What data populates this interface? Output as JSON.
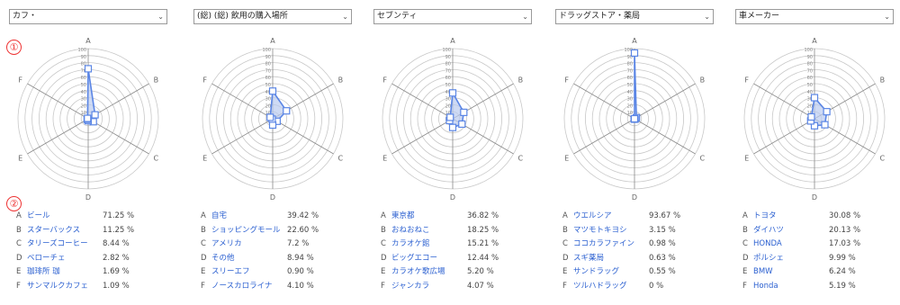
{
  "marker1": "①",
  "marker2": "②",
  "panels": [
    {
      "dropdown": "カフ・",
      "axes": [
        "A",
        "B",
        "C",
        "D",
        "E",
        "F"
      ],
      "values": [
        71.25,
        11.25,
        8.44,
        2.82,
        1.69,
        1.09
      ],
      "legend": [
        {
          "key": "A",
          "label": "ビール",
          "pct": "71.25 %"
        },
        {
          "key": "B",
          "label": "スターバックス",
          "pct": "11.25 %"
        },
        {
          "key": "C",
          "label": "タリーズコーヒー",
          "pct": "8.44 %"
        },
        {
          "key": "D",
          "label": "ベローチェ",
          "pct": "2.82 %"
        },
        {
          "key": "E",
          "label": "珈琲所 珈",
          "pct": "1.69 %"
        },
        {
          "key": "F",
          "label": "サンマルクカフェ",
          "pct": "1.09 %"
        }
      ]
    },
    {
      "dropdown": "(総)  (総)  飲用の購入場所",
      "axes": [
        "A",
        "B",
        "C",
        "D",
        "E",
        "F"
      ],
      "values": [
        39.42,
        22.6,
        7.2,
        8.94,
        0.9,
        4.1
      ],
      "legend": [
        {
          "key": "A",
          "label": "自宅",
          "pct": "39.42 %"
        },
        {
          "key": "B",
          "label": "ショッピングモール",
          "pct": "22.60 %"
        },
        {
          "key": "C",
          "label": "アメリカ",
          "pct": "7.2 %"
        },
        {
          "key": "D",
          "label": "その他",
          "pct": "8.94 %"
        },
        {
          "key": "E",
          "label": "スリーエフ",
          "pct": "0.90 %"
        },
        {
          "key": "F",
          "label": "ノースカロライナ",
          "pct": "4.10 %"
        }
      ]
    },
    {
      "dropdown": "セブンティ",
      "axes": [
        "A",
        "B",
        "C",
        "D",
        "E",
        "F"
      ],
      "values": [
        36.82,
        18.25,
        15.21,
        12.44,
        5.2,
        4.07
      ],
      "legend": [
        {
          "key": "A",
          "label": "東京都",
          "pct": "36.82 %"
        },
        {
          "key": "B",
          "label": "おねおねこ",
          "pct": "18.25 %"
        },
        {
          "key": "C",
          "label": "カラオケ館",
          "pct": "15.21 %"
        },
        {
          "key": "D",
          "label": "ビッグエコー",
          "pct": "12.44 %"
        },
        {
          "key": "E",
          "label": "カラオケ歌広場",
          "pct": "5.20 %"
        },
        {
          "key": "F",
          "label": "ジャンカラ",
          "pct": "4.07 %"
        }
      ]
    },
    {
      "dropdown": "ドラッグストア・薬局",
      "axes": [
        "A",
        "B",
        "C",
        "D",
        "E",
        "F"
      ],
      "values": [
        93.67,
        3.15,
        0.98,
        0.63,
        0.55,
        0.0
      ],
      "legend": [
        {
          "key": "A",
          "label": "ウエルシア",
          "pct": "93.67 %"
        },
        {
          "key": "B",
          "label": "マツモトキヨシ",
          "pct": "3.15 %"
        },
        {
          "key": "C",
          "label": "ココカラファイン",
          "pct": "0.98 %"
        },
        {
          "key": "D",
          "label": "スギ薬局",
          "pct": "0.63 %"
        },
        {
          "key": "E",
          "label": "サンドラッグ",
          "pct": "0.55 %"
        },
        {
          "key": "F",
          "label": "ツルハドラッグ",
          "pct": "0 %"
        }
      ]
    },
    {
      "dropdown": "車メーカー",
      "axes": [
        "A",
        "B",
        "C",
        "D",
        "E",
        "F"
      ],
      "values": [
        30.08,
        20.13,
        17.03,
        9.99,
        6.24,
        5.19
      ],
      "legend": [
        {
          "key": "A",
          "label": "トヨタ",
          "pct": "30.08 %"
        },
        {
          "key": "B",
          "label": "ダイハツ",
          "pct": "20.13 %"
        },
        {
          "key": "C",
          "label": "HONDA",
          "pct": "17.03 %"
        },
        {
          "key": "D",
          "label": "ポルシェ",
          "pct": "9.99 %"
        },
        {
          "key": "E",
          "label": "BMW",
          "pct": "6.24 %"
        },
        {
          "key": "F",
          "label": "Honda",
          "pct": "5.19 %"
        }
      ]
    }
  ],
  "colors": {
    "stroke": "#5b86e5",
    "fill": "#b9cbf0",
    "grid": "#c8c8c8",
    "axis": "#8a8a8a",
    "marker": "#ee3333"
  }
}
